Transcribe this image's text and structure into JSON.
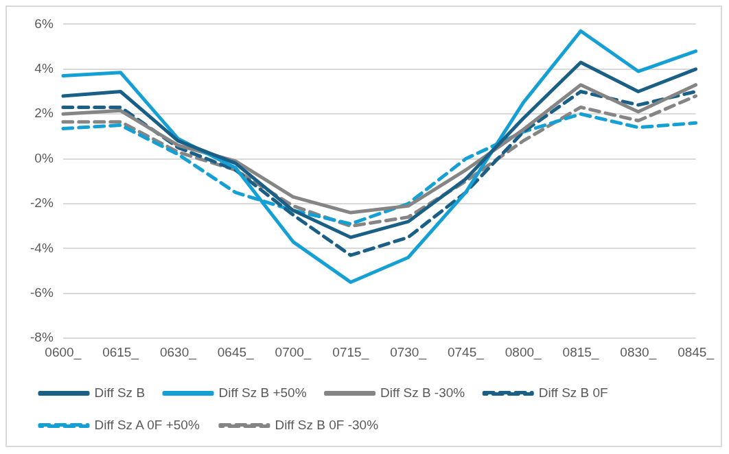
{
  "chart_data": {
    "type": "line",
    "categories": [
      "0600_",
      "0615_",
      "0630_",
      "0645_",
      "0700_",
      "0715_",
      "0730_",
      "0745_",
      "0800_",
      "0815_",
      "0830_",
      "0845_"
    ],
    "series": [
      {
        "name": "Diff Sz B",
        "color": "#1a5f85",
        "line_style": "solid",
        "values": [
          2.8,
          3.0,
          0.8,
          -0.2,
          -2.3,
          -3.5,
          -2.8,
          -0.9,
          1.8,
          4.3,
          3.0,
          4.0
        ]
      },
      {
        "name": "Diff Sz B +50%",
        "color": "#14a0d4",
        "line_style": "solid",
        "values": [
          3.7,
          3.85,
          0.9,
          -0.4,
          -3.7,
          -5.5,
          -4.4,
          -1.5,
          2.5,
          5.7,
          3.9,
          4.8
        ]
      },
      {
        "name": "Diff Sz B -30%",
        "color": "#858585",
        "line_style": "solid",
        "values": [
          2.0,
          2.15,
          0.6,
          -0.1,
          -1.7,
          -2.4,
          -2.1,
          -0.5,
          1.3,
          3.3,
          2.1,
          3.3
        ]
      },
      {
        "name": "Diff Sz B 0F",
        "color": "#1a5f85",
        "line_style": "dashed",
        "values": [
          2.3,
          2.3,
          0.5,
          -0.5,
          -2.5,
          -4.3,
          -3.5,
          -1.5,
          1.2,
          3.0,
          2.4,
          3.0
        ]
      },
      {
        "name": "Diff Sz A 0F +50%",
        "color": "#14a0d4",
        "line_style": "dashed",
        "values": [
          1.35,
          1.5,
          0.2,
          -1.5,
          -2.3,
          -2.9,
          -2.0,
          0.0,
          1.2,
          2.0,
          1.4,
          1.6
        ]
      },
      {
        "name": "Diff Sz B 0F -30%",
        "color": "#858585",
        "line_style": "dashed",
        "values": [
          1.65,
          1.65,
          0.3,
          -0.5,
          -2.1,
          -3.0,
          -2.6,
          -1.0,
          0.8,
          2.3,
          1.7,
          2.8
        ]
      }
    ],
    "ylim": [
      -8,
      6
    ],
    "yticks": [
      {
        "value": -8,
        "label": "-8%"
      },
      {
        "value": -6,
        "label": "-6%"
      },
      {
        "value": -4,
        "label": "-4%"
      },
      {
        "value": -2,
        "label": "-2%"
      },
      {
        "value": 0,
        "label": "0%"
      },
      {
        "value": 2,
        "label": "2%"
      },
      {
        "value": 4,
        "label": "4%"
      },
      {
        "value": 6,
        "label": "6%"
      }
    ],
    "grid": "y",
    "legend": "bottom",
    "marker": "none"
  }
}
